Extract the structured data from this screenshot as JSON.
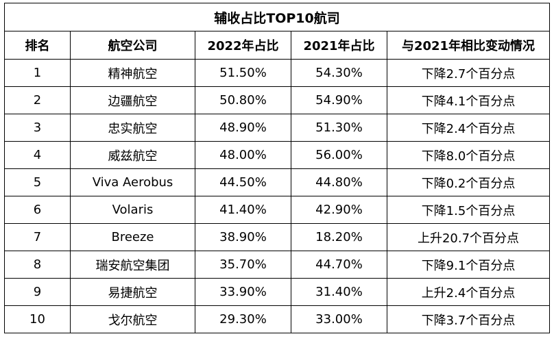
{
  "title": "辅收占比TOP10航司",
  "headers": [
    "排名",
    "航空公司",
    "2022年占比",
    "2021年占比",
    "与2021年相比变动情况"
  ],
  "rows": [
    [
      "1",
      "精神航空",
      "51.50%",
      "54.30%",
      "下降2.7个百分点"
    ],
    [
      "2",
      "边疆航空",
      "50.80%",
      "54.90%",
      "下降4.1个百分点"
    ],
    [
      "3",
      "忠实航空",
      "48.90%",
      "51.30%",
      "下降2.4个百分点"
    ],
    [
      "4",
      "威兹航空",
      "48.00%",
      "56.00%",
      "下降8.0个百分点"
    ],
    [
      "5",
      "Viva Aerobus",
      "44.50%",
      "44.80%",
      "下降0.2个百分点"
    ],
    [
      "6",
      "Volaris",
      "41.40%",
      "42.90%",
      "下降1.5个百分点"
    ],
    [
      "7",
      "Breeze",
      "38.90%",
      "18.20%",
      "上升20.7个百分点"
    ],
    [
      "8",
      "瑞安航空集团",
      "35.70%",
      "44.70%",
      "下降9.1个百分点"
    ],
    [
      "9",
      "易捷航空",
      "33.90%",
      "31.40%",
      "上升2.4个百分点"
    ],
    [
      "10",
      "戈尔航空",
      "29.30%",
      "33.00%",
      "下降3.7个百分点"
    ]
  ]
}
